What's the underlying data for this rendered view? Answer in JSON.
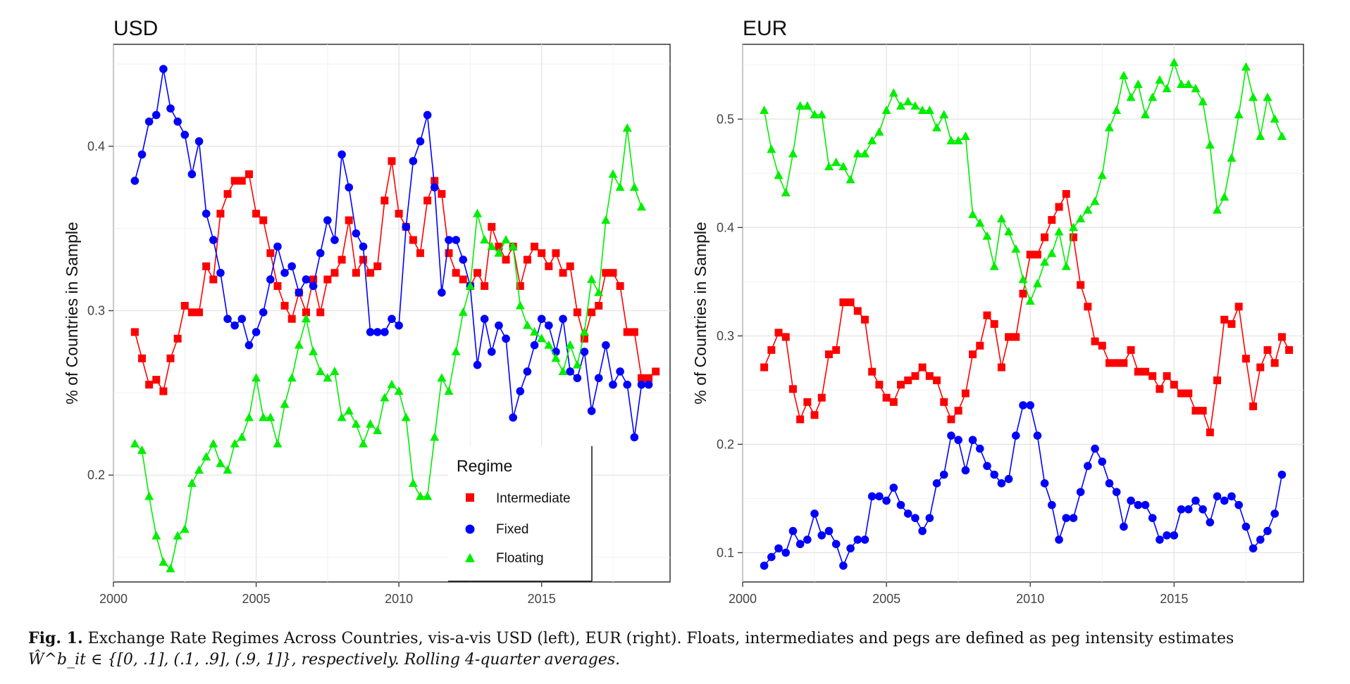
{
  "panels": [
    {
      "title": "USD",
      "ylabel": "% of Countries in Sample",
      "x_ticks": [
        "2000",
        "2005",
        "2010",
        "2015"
      ],
      "y_ticks": [
        "0.2",
        "0.3",
        "0.4"
      ]
    },
    {
      "title": "EUR",
      "ylabel": "% of Countries in Sample",
      "x_ticks": [
        "2000",
        "2005",
        "2010",
        "2015"
      ],
      "y_ticks": [
        "0.1",
        "0.2",
        "0.3",
        "0.4",
        "0.5"
      ]
    }
  ],
  "legend": {
    "title": "Regime",
    "items": [
      "Intermediate",
      "Fixed",
      "Floating"
    ]
  },
  "colors": {
    "Intermediate": "#ff0000",
    "Fixed": "#0000ff",
    "Floating": "#00ee00"
  },
  "caption": {
    "label": "Fig. 1.",
    "text": "Exchange Rate Regimes Across Countries, vis-a-vis USD (left), EUR (right). Floats, intermediates and pegs are defined as peg intensity estimates",
    "math": "Ŵ^b_it ∈ {[0, .1], (.1, .9], (.9, 1]}, respectively. Rolling 4-quarter averages."
  },
  "chart_data": [
    {
      "type": "line",
      "title": "USD",
      "xlabel": "",
      "ylabel": "% of Countries in Sample",
      "xlim": [
        2000,
        2019.5
      ],
      "ylim": [
        0.135,
        0.462
      ],
      "grid": true,
      "legend_position": "bottom-right",
      "x_start": 2000.75,
      "x_step": 0.25,
      "series": [
        {
          "name": "Intermediate",
          "marker": "square",
          "values": [
            0.287,
            0.271,
            0.255,
            0.258,
            0.251,
            0.271,
            0.283,
            0.303,
            0.299,
            0.299,
            0.327,
            0.319,
            0.359,
            0.371,
            0.379,
            0.379,
            0.383,
            0.359,
            0.355,
            0.335,
            0.315,
            0.303,
            0.295,
            0.311,
            0.299,
            0.319,
            0.299,
            0.319,
            0.323,
            0.331,
            0.355,
            0.323,
            0.331,
            0.323,
            0.327,
            0.367,
            0.391,
            0.359,
            0.351,
            0.343,
            0.335,
            0.367,
            0.379,
            0.371,
            0.335,
            0.323,
            0.319,
            0.315,
            0.323,
            0.315,
            0.351,
            0.339,
            0.331,
            0.339,
            0.315,
            0.331,
            0.339,
            0.335,
            0.327,
            0.335,
            0.323,
            0.327,
            0.299,
            0.283,
            0.299,
            0.303,
            0.323,
            0.323,
            0.315,
            0.287,
            0.287,
            0.259,
            0.259,
            0.263
          ]
        },
        {
          "name": "Fixed",
          "marker": "circle",
          "values": [
            0.379,
            0.395,
            0.415,
            0.419,
            0.447,
            0.423,
            0.415,
            0.407,
            0.383,
            0.403,
            0.359,
            0.343,
            0.323,
            0.295,
            0.291,
            0.295,
            0.279,
            0.287,
            0.299,
            0.319,
            0.339,
            0.323,
            0.327,
            0.311,
            0.319,
            0.315,
            0.335,
            0.355,
            0.343,
            0.395,
            0.375,
            0.347,
            0.339,
            0.287,
            0.287,
            0.287,
            0.295,
            0.291,
            0.351,
            0.391,
            0.403,
            0.419,
            0.375,
            0.311,
            0.343,
            0.343,
            0.331,
            0.315,
            0.267,
            0.295,
            0.275,
            0.291,
            0.283,
            0.235,
            0.251,
            0.263,
            0.279,
            0.295,
            0.291,
            0.275,
            0.295,
            0.263,
            0.259,
            0.275,
            0.239,
            0.259,
            0.279,
            0.255,
            0.263,
            0.255,
            0.223,
            0.255,
            0.255
          ]
        },
        {
          "name": "Floating",
          "marker": "triangle",
          "values": [
            0.219,
            0.215,
            0.187,
            0.163,
            0.147,
            0.143,
            0.163,
            0.167,
            0.195,
            0.203,
            0.211,
            0.219,
            0.207,
            0.203,
            0.219,
            0.223,
            0.235,
            0.259,
            0.235,
            0.235,
            0.219,
            0.243,
            0.259,
            0.279,
            0.295,
            0.275,
            0.263,
            0.259,
            0.263,
            0.235,
            0.239,
            0.231,
            0.219,
            0.231,
            0.227,
            0.247,
            0.255,
            0.251,
            0.235,
            0.195,
            0.187,
            0.187,
            0.223,
            0.259,
            0.251,
            0.275,
            0.299,
            0.315,
            0.359,
            0.343,
            0.339,
            0.335,
            0.343,
            0.339,
            0.303,
            0.291,
            0.287,
            0.283,
            0.279,
            0.271,
            0.263,
            0.279,
            0.267,
            0.287,
            0.319,
            0.311,
            0.355,
            0.383,
            0.375,
            0.411,
            0.375,
            0.363
          ]
        }
      ]
    },
    {
      "type": "line",
      "title": "EUR",
      "xlabel": "",
      "ylabel": "% of Countries in Sample",
      "xlim": [
        2000,
        2019.5
      ],
      "ylim": [
        0.073,
        0.569
      ],
      "grid": true,
      "x_start": 2000.75,
      "x_step": 0.25,
      "series": [
        {
          "name": "Intermediate",
          "marker": "square",
          "values": [
            0.271,
            0.287,
            0.303,
            0.299,
            0.251,
            0.223,
            0.239,
            0.227,
            0.243,
            0.283,
            0.287,
            0.331,
            0.331,
            0.323,
            0.315,
            0.267,
            0.255,
            0.243,
            0.239,
            0.255,
            0.259,
            0.263,
            0.271,
            0.263,
            0.259,
            0.239,
            0.223,
            0.231,
            0.247,
            0.283,
            0.291,
            0.319,
            0.311,
            0.271,
            0.299,
            0.299,
            0.339,
            0.375,
            0.375,
            0.391,
            0.407,
            0.419,
            0.431,
            0.391,
            0.347,
            0.327,
            0.295,
            0.291,
            0.275,
            0.275,
            0.275,
            0.287,
            0.267,
            0.267,
            0.263,
            0.251,
            0.263,
            0.255,
            0.247,
            0.247,
            0.231,
            0.231,
            0.211,
            0.259,
            0.315,
            0.311,
            0.327,
            0.279,
            0.235,
            0.271,
            0.287,
            0.275,
            0.299,
            0.287
          ]
        },
        {
          "name": "Fixed",
          "marker": "circle",
          "values": [
            0.088,
            0.096,
            0.104,
            0.1,
            0.12,
            0.108,
            0.112,
            0.136,
            0.116,
            0.12,
            0.108,
            0.088,
            0.104,
            0.112,
            0.112,
            0.152,
            0.152,
            0.148,
            0.16,
            0.144,
            0.136,
            0.132,
            0.12,
            0.132,
            0.164,
            0.172,
            0.208,
            0.204,
            0.176,
            0.204,
            0.196,
            0.18,
            0.172,
            0.164,
            0.168,
            0.208,
            0.236,
            0.236,
            0.208,
            0.164,
            0.144,
            0.112,
            0.132,
            0.132,
            0.156,
            0.18,
            0.196,
            0.184,
            0.164,
            0.156,
            0.124,
            0.148,
            0.144,
            0.144,
            0.132,
            0.112,
            0.116,
            0.116,
            0.14,
            0.14,
            0.148,
            0.14,
            0.128,
            0.152,
            0.148,
            0.152,
            0.144,
            0.124,
            0.104,
            0.112,
            0.12,
            0.136,
            0.172
          ]
        },
        {
          "name": "Floating",
          "marker": "triangle",
          "values": [
            0.508,
            0.472,
            0.448,
            0.432,
            0.468,
            0.512,
            0.512,
            0.504,
            0.504,
            0.456,
            0.46,
            0.456,
            0.444,
            0.468,
            0.468,
            0.48,
            0.488,
            0.508,
            0.524,
            0.512,
            0.516,
            0.512,
            0.508,
            0.508,
            0.492,
            0.504,
            0.48,
            0.48,
            0.484,
            0.412,
            0.404,
            0.392,
            0.364,
            0.408,
            0.396,
            0.38,
            0.352,
            0.332,
            0.348,
            0.368,
            0.376,
            0.396,
            0.364,
            0.4,
            0.408,
            0.416,
            0.424,
            0.448,
            0.492,
            0.508,
            0.54,
            0.52,
            0.532,
            0.504,
            0.52,
            0.536,
            0.528,
            0.552,
            0.532,
            0.532,
            0.528,
            0.516,
            0.476,
            0.416,
            0.428,
            0.464,
            0.504,
            0.548,
            0.52,
            0.484,
            0.52,
            0.5,
            0.484
          ]
        }
      ]
    }
  ]
}
